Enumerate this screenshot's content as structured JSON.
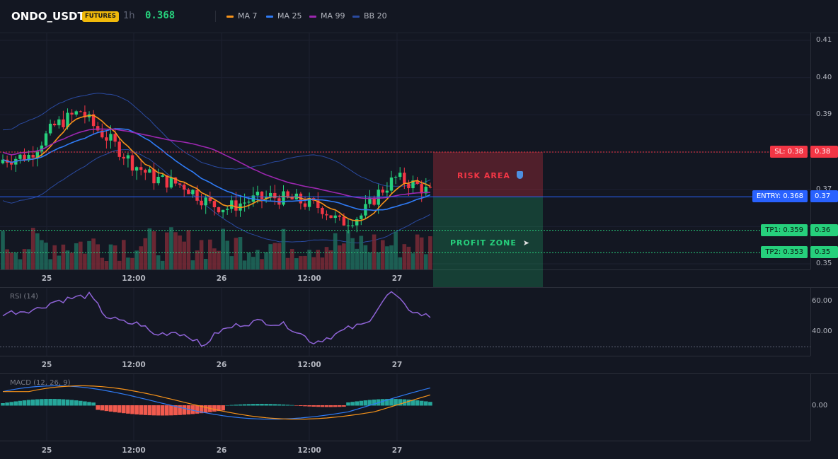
{
  "header": {
    "symbol": "ONDO_USDT",
    "badge": "FUTURES",
    "timeframe": "1h",
    "price": "0.368",
    "legend": [
      {
        "label": "MA 7",
        "color": "#f7931a"
      },
      {
        "label": "MA 25",
        "color": "#2f7bf5"
      },
      {
        "label": "MA 99",
        "color": "#9c27b0"
      },
      {
        "label": "BB 20",
        "color": "#2a4aa0"
      }
    ]
  },
  "main_chart": {
    "price_axis": [
      "0.41",
      "0.40",
      "0.39",
      "0.37",
      "0.35"
    ],
    "time_axis": [
      "25",
      "12:00",
      "26",
      "12:00",
      "27"
    ],
    "levels": {
      "sl": {
        "label": "SL: 0.38",
        "value": "0.38",
        "price": 0.38,
        "color": "#f23645"
      },
      "entry": {
        "label": "ENTRY: 0.368",
        "value": "0.37",
        "price": 0.368,
        "color": "#2962ff"
      },
      "tp1": {
        "label": "TP1: 0.359",
        "value": "0.36",
        "price": 0.359,
        "color": "#26d07c"
      },
      "tp2": {
        "label": "TP2: 0.353",
        "value": "0.35",
        "price": 0.353,
        "color": "#26d07c"
      }
    },
    "zones": {
      "risk": "RISK AREA",
      "risk_icon": "shield-icon",
      "profit": "PROFIT ZONE",
      "profit_icon": "rocket-icon"
    }
  },
  "rsi": {
    "label": "RSI (14)",
    "axis": [
      "60.00",
      "40.00"
    ],
    "time_axis": [
      "25",
      "12:00",
      "26",
      "12:00",
      "27"
    ]
  },
  "macd": {
    "label": "MACD (12, 26, 9)",
    "axis": [
      "0.00"
    ],
    "time_axis": [
      "25",
      "12:00",
      "26",
      "12:00",
      "27"
    ]
  },
  "colors": {
    "up": "#26d07c",
    "down": "#f23645",
    "ma7": "#f7931a",
    "ma25": "#2f7bf5",
    "ma99": "#9c27b0",
    "bb": "#2a4aa0",
    "rsi": "#8e63d6",
    "macd_line": "#2f7bf5",
    "signal_line": "#f7931a"
  }
}
